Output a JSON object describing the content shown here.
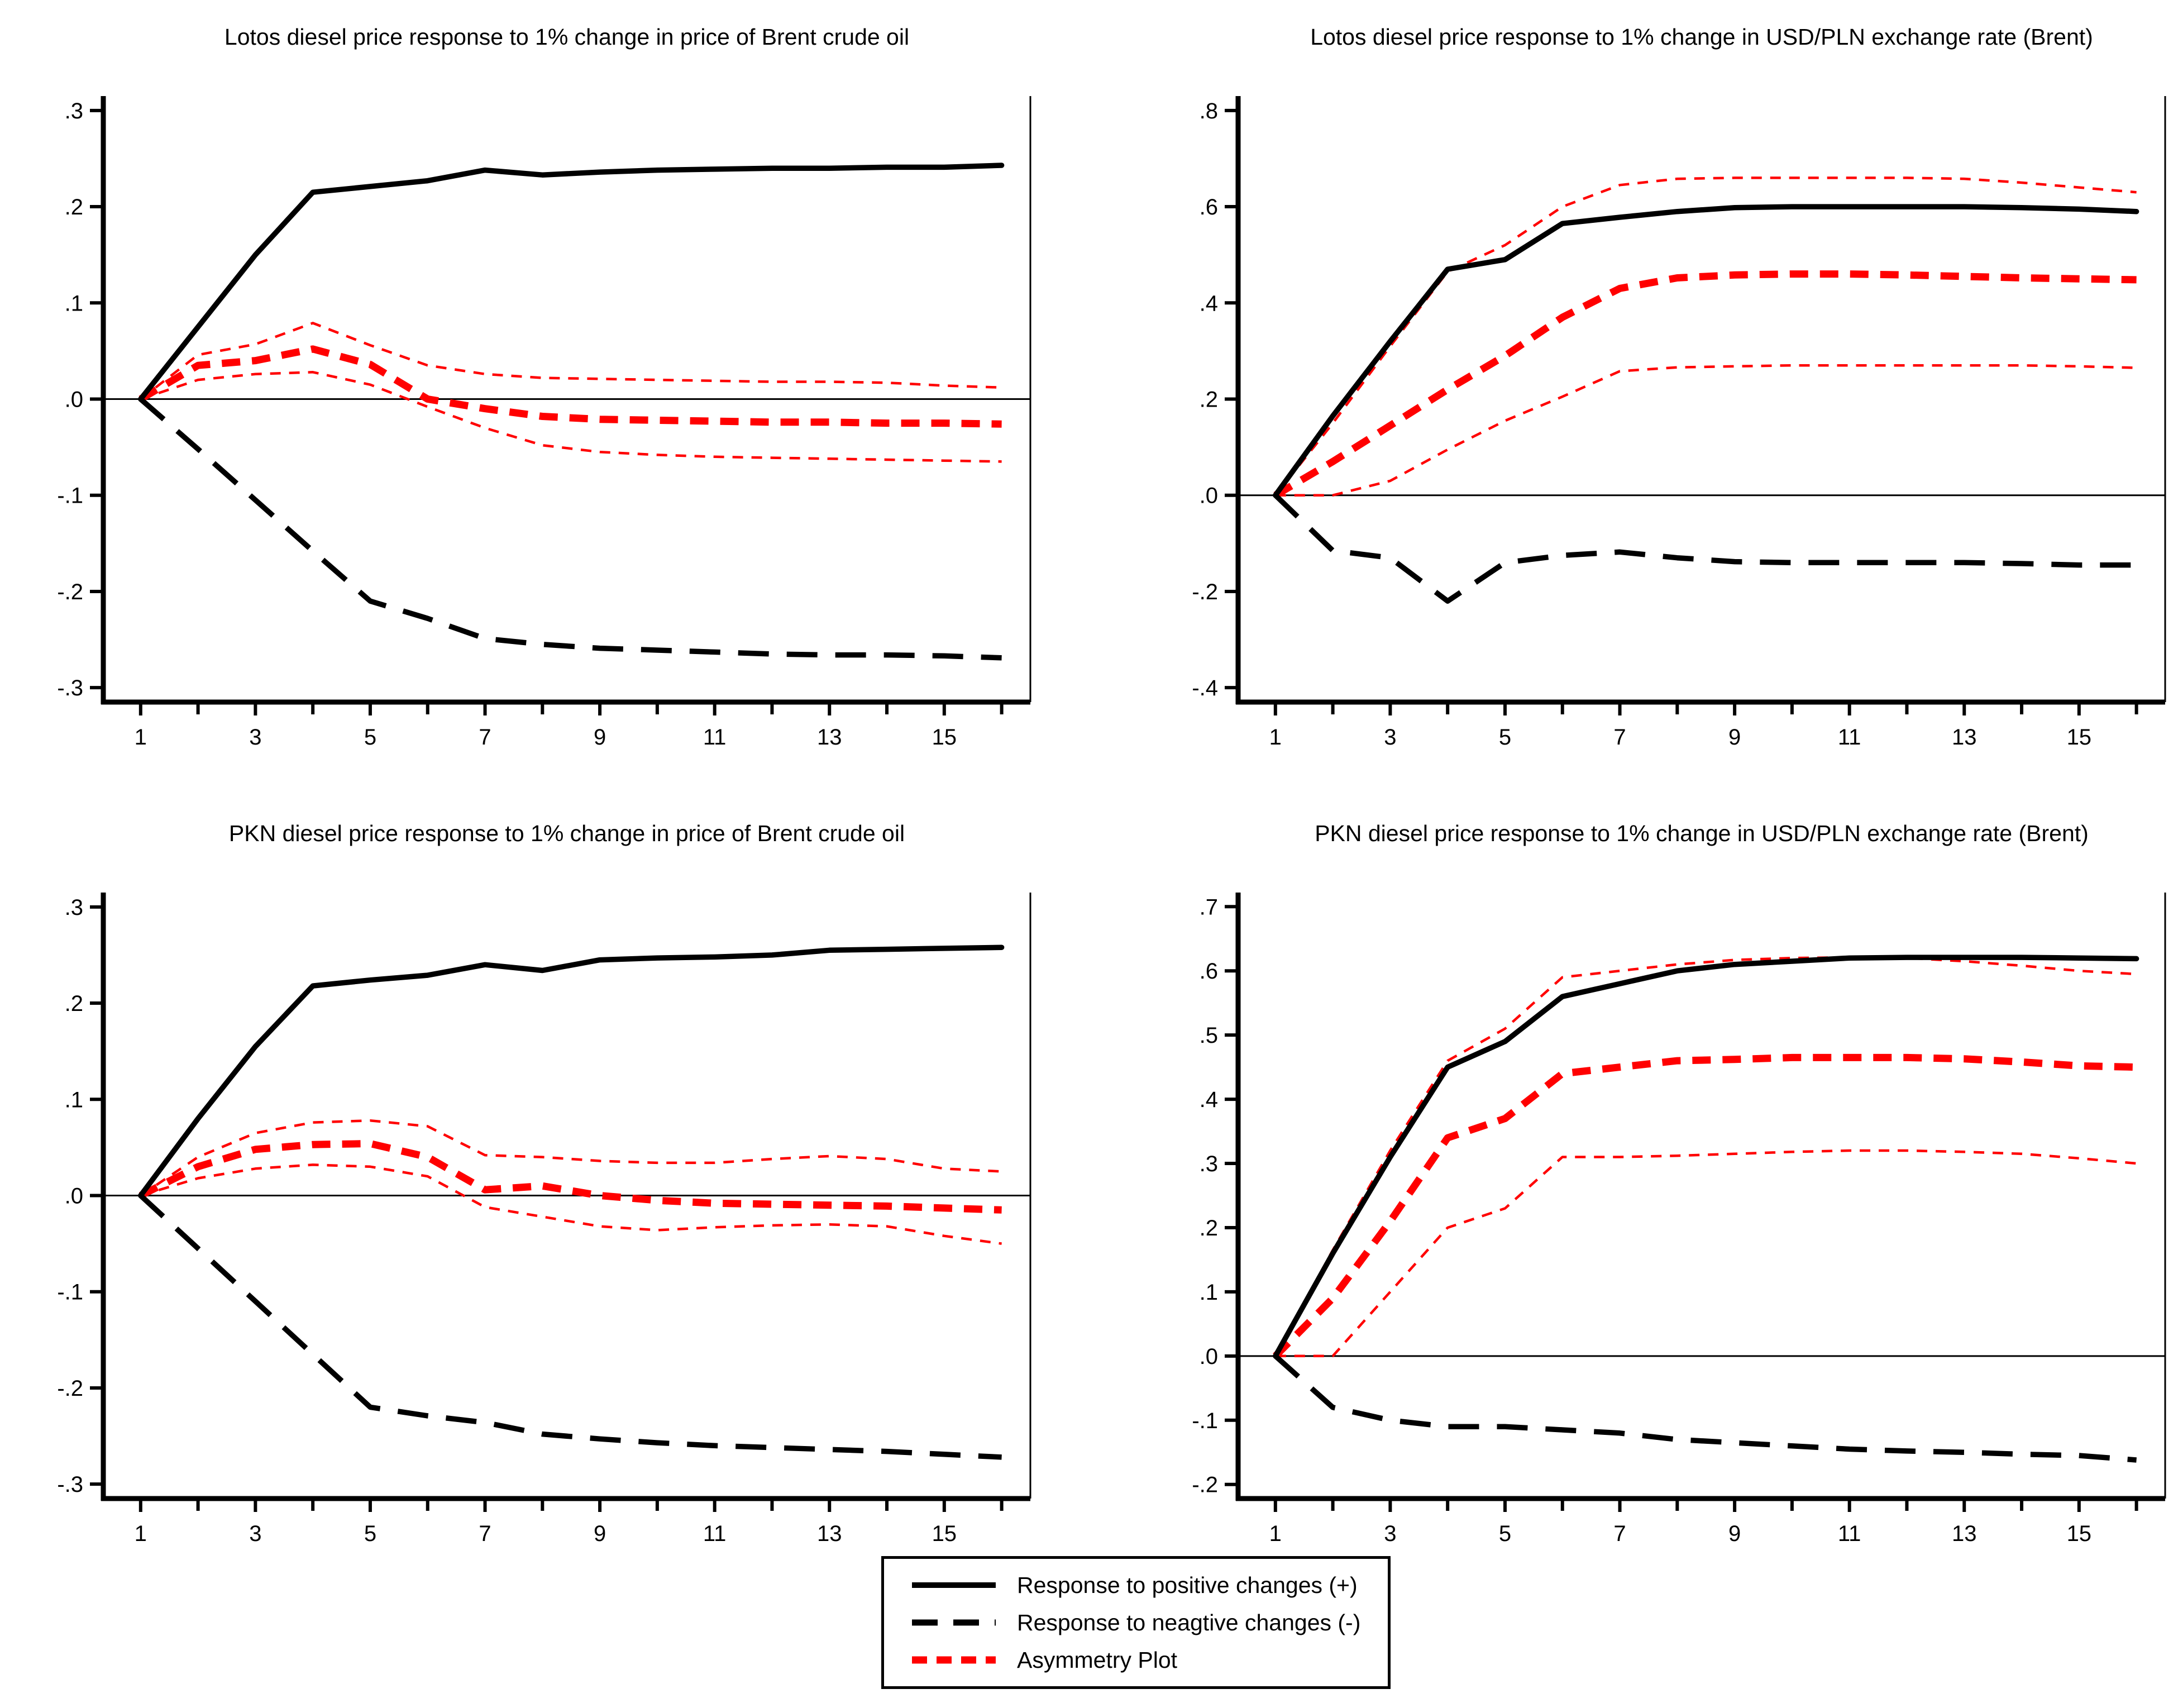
{
  "figure": {
    "background": "#ffffff"
  },
  "colors": {
    "line_black": "#000000",
    "line_red": "#ff0000",
    "text": "#000000",
    "background": "#ffffff"
  },
  "legend": {
    "items": [
      {
        "name": "response-positive",
        "label": "Response to positive changes (+)",
        "style": "solid-black"
      },
      {
        "name": "response-negative",
        "label": "Response to neagtive changes (-)",
        "style": "longdash-black"
      },
      {
        "name": "asymmetry",
        "label": "Asymmetry Plot",
        "style": "thickdash-red"
      }
    ]
  },
  "chart_data": [
    {
      "type": "line",
      "title": "Lotos diesel price response to 1% change in price of Brent crude oil",
      "xlabel": "",
      "ylabel": "",
      "x": [
        1,
        2,
        3,
        4,
        5,
        6,
        7,
        8,
        9,
        10,
        11,
        12,
        13,
        14,
        15,
        16
      ],
      "xlim": [
        0.35,
        16.5
      ],
      "ylim": [
        -0.3,
        0.3
      ],
      "ylim_draw": [
        -0.315,
        0.315
      ],
      "yticks": [
        0.3,
        0.2,
        0.1,
        0.0,
        -0.1,
        -0.2,
        -0.3
      ],
      "ytick_labels": [
        ".3",
        ".2",
        ".1",
        ".0",
        "-.1",
        "-.2",
        "-.3"
      ],
      "xticks_major": [
        1,
        3,
        5,
        7,
        9,
        11,
        13,
        15
      ],
      "xticks_minor": [
        2,
        4,
        6,
        8,
        10,
        12,
        14,
        16
      ],
      "grid": false,
      "series": [
        {
          "name": "response-positive",
          "legend": "Response to positive changes (+)",
          "color": "#000000",
          "style": "solid",
          "values": [
            0,
            0.075,
            0.15,
            0.215,
            0.221,
            0.227,
            0.238,
            0.233,
            0.236,
            0.238,
            0.239,
            0.24,
            0.24,
            0.241,
            0.241,
            0.243
          ]
        },
        {
          "name": "response-negative",
          "legend": "Response to neagtive changes (-)",
          "color": "#000000",
          "style": "longdash",
          "values": [
            0,
            -0.052,
            -0.105,
            -0.158,
            -0.21,
            -0.228,
            -0.249,
            -0.255,
            -0.259,
            -0.261,
            -0.263,
            -0.265,
            -0.266,
            -0.266,
            -0.267,
            -0.269
          ]
        },
        {
          "name": "asymmetry",
          "legend": "Asymmetry Plot",
          "color": "#ff0000",
          "style": "thickdash",
          "values": [
            0,
            0.035,
            0.04,
            0.052,
            0.036,
            0.0,
            -0.01,
            -0.018,
            -0.021,
            -0.022,
            -0.023,
            -0.024,
            -0.024,
            -0.025,
            -0.025,
            -0.026
          ]
        },
        {
          "name": "asymmetry-ci-upper",
          "legend": "",
          "color": "#ff0000",
          "style": "dots",
          "values": [
            0,
            0.046,
            0.057,
            0.079,
            0.056,
            0.035,
            0.026,
            0.022,
            0.021,
            0.02,
            0.019,
            0.018,
            0.018,
            0.017,
            0.014,
            0.012
          ]
        },
        {
          "name": "asymmetry-ci-lower",
          "legend": "",
          "color": "#ff0000",
          "style": "dots",
          "values": [
            0,
            0.02,
            0.026,
            0.028,
            0.015,
            -0.008,
            -0.03,
            -0.048,
            -0.055,
            -0.058,
            -0.06,
            -0.061,
            -0.062,
            -0.063,
            -0.064,
            -0.065
          ]
        }
      ]
    },
    {
      "type": "line",
      "title": "Lotos diesel price response to 1% change in USD/PLN exchange rate (Brent)",
      "xlabel": "",
      "ylabel": "",
      "x": [
        1,
        2,
        3,
        4,
        5,
        6,
        7,
        8,
        9,
        10,
        11,
        12,
        13,
        14,
        15,
        16
      ],
      "xlim": [
        0.35,
        16.5
      ],
      "ylim": [
        -0.4,
        0.8
      ],
      "ylim_draw": [
        -0.43,
        0.83
      ],
      "yticks": [
        0.8,
        0.6,
        0.4,
        0.2,
        0.0,
        -0.2,
        -0.4
      ],
      "ytick_labels": [
        ".8",
        ".6",
        ".4",
        ".2",
        ".0",
        "-.2",
        "-.4"
      ],
      "xticks_major": [
        1,
        3,
        5,
        7,
        9,
        11,
        13,
        15
      ],
      "xticks_minor": [
        2,
        4,
        6,
        8,
        10,
        12,
        14,
        16
      ],
      "grid": false,
      "series": [
        {
          "name": "response-positive",
          "legend": "Response to positive changes (+)",
          "color": "#000000",
          "style": "solid",
          "values": [
            0,
            0.165,
            0.32,
            0.47,
            0.49,
            0.565,
            0.578,
            0.59,
            0.598,
            0.6,
            0.6,
            0.6,
            0.6,
            0.598,
            0.595,
            0.59
          ]
        },
        {
          "name": "response-negative",
          "legend": "Response to neagtive changes (-)",
          "color": "#000000",
          "style": "longdash",
          "values": [
            0,
            -0.115,
            -0.13,
            -0.22,
            -0.14,
            -0.125,
            -0.118,
            -0.13,
            -0.138,
            -0.14,
            -0.14,
            -0.14,
            -0.14,
            -0.142,
            -0.145,
            -0.145
          ]
        },
        {
          "name": "asymmetry",
          "legend": "Asymmetry Plot",
          "color": "#ff0000",
          "style": "thickdash",
          "values": [
            0,
            0.07,
            0.145,
            0.22,
            0.29,
            0.37,
            0.43,
            0.452,
            0.458,
            0.46,
            0.46,
            0.458,
            0.455,
            0.452,
            0.45,
            0.448
          ]
        },
        {
          "name": "asymmetry-ci-upper",
          "legend": "",
          "color": "#ff0000",
          "style": "dots",
          "values": [
            0,
            0.15,
            0.31,
            0.465,
            0.52,
            0.6,
            0.645,
            0.658,
            0.66,
            0.66,
            0.66,
            0.66,
            0.658,
            0.65,
            0.64,
            0.63
          ]
        },
        {
          "name": "asymmetry-ci-lower",
          "legend": "",
          "color": "#ff0000",
          "style": "dots",
          "values": [
            0,
            0.0,
            0.03,
            0.095,
            0.155,
            0.205,
            0.258,
            0.266,
            0.268,
            0.27,
            0.27,
            0.27,
            0.27,
            0.27,
            0.268,
            0.265
          ]
        }
      ]
    },
    {
      "type": "line",
      "title": "PKN diesel price response to 1% change in price of Brent crude oil",
      "xlabel": "",
      "ylabel": "",
      "x": [
        1,
        2,
        3,
        4,
        5,
        6,
        7,
        8,
        9,
        10,
        11,
        12,
        13,
        14,
        15,
        16
      ],
      "xlim": [
        0.35,
        16.5
      ],
      "ylim": [
        -0.3,
        0.3
      ],
      "ylim_draw": [
        -0.315,
        0.315
      ],
      "yticks": [
        0.3,
        0.2,
        0.1,
        0.0,
        -0.1,
        -0.2,
        -0.3
      ],
      "ytick_labels": [
        ".3",
        ".2",
        ".1",
        ".0",
        "-.1",
        "-.2",
        "-.3"
      ],
      "xticks_major": [
        1,
        3,
        5,
        7,
        9,
        11,
        13,
        15
      ],
      "xticks_minor": [
        2,
        4,
        6,
        8,
        10,
        12,
        14,
        16
      ],
      "grid": false,
      "series": [
        {
          "name": "response-positive",
          "legend": "Response to positive changes (+)",
          "color": "#000000",
          "style": "solid",
          "values": [
            0,
            0.08,
            0.155,
            0.218,
            0.224,
            0.229,
            0.24,
            0.234,
            0.245,
            0.247,
            0.248,
            0.25,
            0.255,
            0.256,
            0.257,
            0.258
          ]
        },
        {
          "name": "response-negative",
          "legend": "Response to neagtive changes (-)",
          "color": "#000000",
          "style": "longdash",
          "values": [
            0,
            -0.055,
            -0.11,
            -0.165,
            -0.22,
            -0.229,
            -0.236,
            -0.248,
            -0.253,
            -0.257,
            -0.26,
            -0.262,
            -0.264,
            -0.266,
            -0.269,
            -0.272
          ]
        },
        {
          "name": "asymmetry",
          "legend": "Asymmetry Plot",
          "color": "#ff0000",
          "style": "thickdash",
          "values": [
            0,
            0.03,
            0.048,
            0.053,
            0.054,
            0.04,
            0.006,
            0.01,
            0.0,
            -0.005,
            -0.008,
            -0.009,
            -0.01,
            -0.011,
            -0.013,
            -0.015
          ]
        },
        {
          "name": "asymmetry-ci-upper",
          "legend": "",
          "color": "#ff0000",
          "style": "dots",
          "values": [
            0,
            0.04,
            0.065,
            0.076,
            0.078,
            0.072,
            0.042,
            0.04,
            0.036,
            0.034,
            0.034,
            0.038,
            0.041,
            0.038,
            0.028,
            0.025
          ]
        },
        {
          "name": "asymmetry-ci-lower",
          "legend": "",
          "color": "#ff0000",
          "style": "dots",
          "values": [
            0,
            0.018,
            0.028,
            0.032,
            0.03,
            0.02,
            -0.012,
            -0.022,
            -0.032,
            -0.036,
            -0.033,
            -0.031,
            -0.03,
            -0.032,
            -0.042,
            -0.05
          ]
        }
      ]
    },
    {
      "type": "line",
      "title": "PKN diesel price response to 1% change in USD/PLN exchange rate (Brent)",
      "xlabel": "",
      "ylabel": "",
      "x": [
        1,
        2,
        3,
        4,
        5,
        6,
        7,
        8,
        9,
        10,
        11,
        12,
        13,
        14,
        15,
        16
      ],
      "xlim": [
        0.35,
        16.5
      ],
      "ylim": [
        -0.2,
        0.7
      ],
      "ylim_draw": [
        -0.222,
        0.722
      ],
      "yticks": [
        0.7,
        0.6,
        0.5,
        0.4,
        0.3,
        0.2,
        0.1,
        0.0,
        -0.1,
        -0.2
      ],
      "ytick_labels": [
        ".7",
        ".6",
        ".5",
        ".4",
        ".3",
        ".2",
        ".1",
        ".0",
        "-.1",
        "-.2"
      ],
      "xticks_major": [
        1,
        3,
        5,
        7,
        9,
        11,
        13,
        15
      ],
      "xticks_minor": [
        2,
        4,
        6,
        8,
        10,
        12,
        14,
        16
      ],
      "grid": false,
      "series": [
        {
          "name": "response-positive",
          "legend": "Response to positive changes (+)",
          "color": "#000000",
          "style": "solid",
          "values": [
            0,
            0.16,
            0.31,
            0.45,
            0.49,
            0.56,
            0.58,
            0.6,
            0.61,
            0.615,
            0.62,
            0.621,
            0.621,
            0.621,
            0.62,
            0.619
          ]
        },
        {
          "name": "response-negative",
          "legend": "Response to neagtive changes (-)",
          "color": "#000000",
          "style": "longdash",
          "values": [
            0,
            -0.08,
            -0.1,
            -0.11,
            -0.11,
            -0.115,
            -0.12,
            -0.13,
            -0.135,
            -0.14,
            -0.145,
            -0.148,
            -0.15,
            -0.153,
            -0.155,
            -0.162
          ]
        },
        {
          "name": "asymmetry",
          "legend": "Asymmetry Plot",
          "color": "#ff0000",
          "style": "thickdash",
          "values": [
            0,
            0.09,
            0.21,
            0.34,
            0.37,
            0.44,
            0.45,
            0.46,
            0.462,
            0.465,
            0.465,
            0.465,
            0.463,
            0.458,
            0.452,
            0.45
          ]
        },
        {
          "name": "asymmetry-ci-upper",
          "legend": "",
          "color": "#ff0000",
          "style": "dots",
          "values": [
            0,
            0.165,
            0.32,
            0.46,
            0.51,
            0.59,
            0.6,
            0.61,
            0.617,
            0.62,
            0.621,
            0.62,
            0.615,
            0.608,
            0.6,
            0.595
          ]
        },
        {
          "name": "asymmetry-ci-lower",
          "legend": "",
          "color": "#ff0000",
          "style": "dots",
          "values": [
            0,
            0.0,
            0.1,
            0.2,
            0.23,
            0.31,
            0.31,
            0.312,
            0.315,
            0.318,
            0.32,
            0.32,
            0.318,
            0.315,
            0.308,
            0.3
          ]
        }
      ]
    }
  ]
}
